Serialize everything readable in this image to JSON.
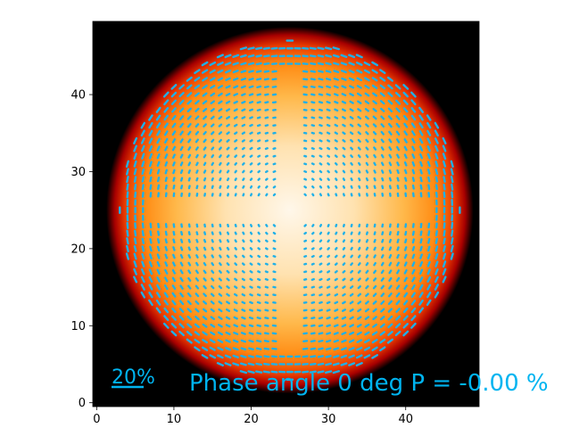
{
  "chart_data": {
    "type": "heatmap",
    "title": "",
    "xlabel": "",
    "ylabel": "",
    "xlim": [
      -0.5,
      49.5
    ],
    "ylim": [
      -0.5,
      49.5
    ],
    "x_ticks": [
      0,
      10,
      20,
      30,
      40
    ],
    "y_ticks": [
      0,
      10,
      20,
      30,
      40
    ],
    "x_tick_labels": [
      "0",
      "10",
      "20",
      "30",
      "40"
    ],
    "y_tick_labels": [
      "0",
      "10",
      "20",
      "30",
      "40"
    ],
    "grid": false,
    "colormap": "hot",
    "disk_center": [
      25,
      25
    ],
    "disk_radius": 22,
    "polarization_vectors": {
      "style": "dotted",
      "color": "#1fb0e8",
      "spacing": 1,
      "pattern": "cross-shaped gaps along central row and column; tangential orientation toward limb"
    },
    "scale_bar_label": "20%",
    "annotation": "Phase angle  0 deg  P = -0.00 %"
  },
  "colors": {
    "background": "#000000",
    "vector_color": "#1fb0e8",
    "text_color": "#00b4f0"
  }
}
